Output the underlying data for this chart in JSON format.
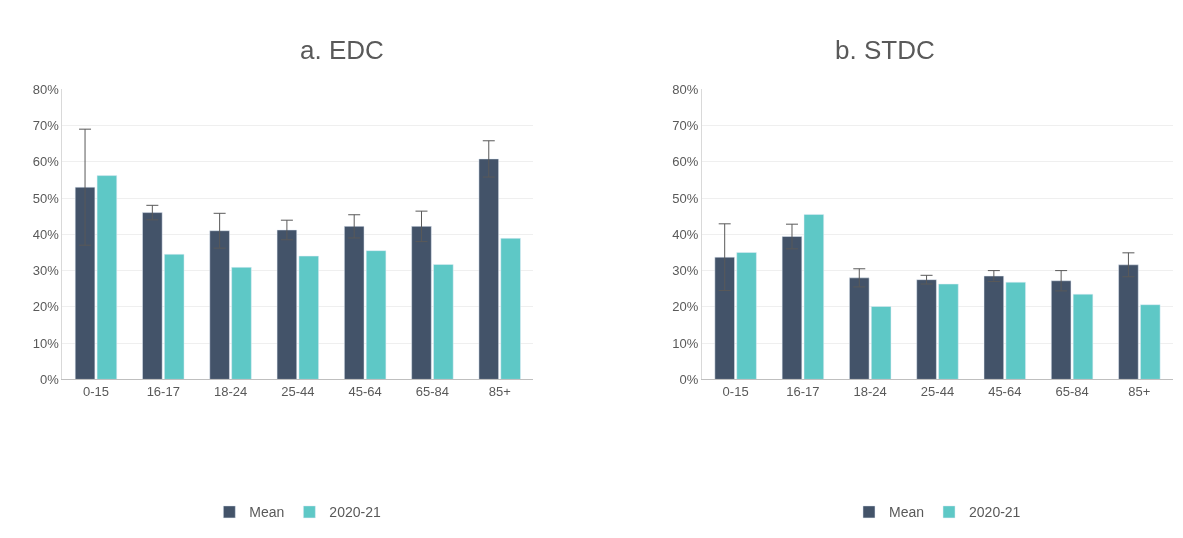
{
  "chart_data": [
    {
      "type": "bar",
      "title": "a. EDC",
      "categories": [
        "0-15",
        "16-17",
        "18-24",
        "25-44",
        "45-64",
        "65-84",
        "85+"
      ],
      "series": [
        {
          "name": "Mean",
          "color": "#435369",
          "values": [
            53,
            46,
            41,
            41.2,
            42.2,
            42.2,
            60.8
          ],
          "errors": [
            16,
            2,
            4.8,
            2.7,
            3.2,
            4.2,
            5
          ]
        },
        {
          "name": "2020-21",
          "color": "#5ec8c6",
          "values": [
            56.2,
            34.5,
            30.9,
            34,
            35.5,
            31.7,
            38.9
          ]
        }
      ],
      "ylim": [
        0,
        80
      ],
      "yticks": [
        {
          "value": 0,
          "label": "0%"
        },
        {
          "value": 10,
          "label": "10%"
        },
        {
          "value": 20,
          "label": "20%"
        },
        {
          "value": 30,
          "label": "30%"
        },
        {
          "value": 40,
          "label": "40%"
        },
        {
          "value": 50,
          "label": "50%"
        },
        {
          "value": 60,
          "label": "60%"
        },
        {
          "value": 70,
          "label": "70%"
        },
        {
          "value": 80,
          "label": "80%"
        }
      ],
      "grid": "y",
      "legend": "bottom"
    },
    {
      "type": "bar",
      "title": "b. STDC",
      "categories": [
        "0-15",
        "16-17",
        "18-24",
        "25-44",
        "45-64",
        "65-84",
        "85+"
      ],
      "series": [
        {
          "name": "Mean",
          "color": "#435369",
          "values": [
            33.7,
            39.4,
            28,
            27.5,
            28.5,
            27.2,
            31.6
          ],
          "errors": [
            9.2,
            3.4,
            2.5,
            1.2,
            1.5,
            2.8,
            3.3
          ]
        },
        {
          "name": "2020-21",
          "color": "#5ec8c6",
          "values": [
            35,
            45.5,
            20.1,
            26.3,
            26.8,
            23.5,
            20.6
          ]
        }
      ],
      "ylim": [
        0,
        80
      ],
      "yticks": [
        {
          "value": 0,
          "label": "0%"
        },
        {
          "value": 10,
          "label": "10%"
        },
        {
          "value": 20,
          "label": "20%"
        },
        {
          "value": 30,
          "label": "30%"
        },
        {
          "value": 40,
          "label": "40%"
        },
        {
          "value": 50,
          "label": "50%"
        },
        {
          "value": 60,
          "label": "60%"
        },
        {
          "value": 70,
          "label": "70%"
        },
        {
          "value": 80,
          "label": "80%"
        }
      ],
      "grid": "y",
      "legend": "bottom"
    }
  ]
}
